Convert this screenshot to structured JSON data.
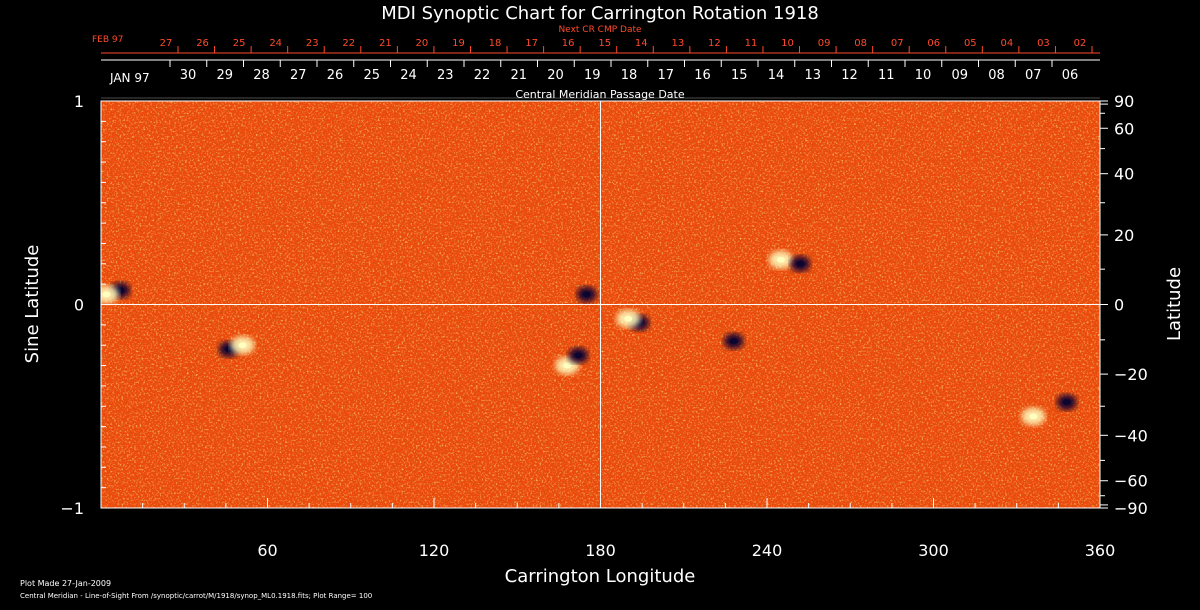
{
  "chart_data": {
    "type": "heatmap",
    "title": "MDI Synoptic Chart for Carrington Rotation 1918",
    "xlabel": "Carrington Longitude",
    "ylabel_left": "Sine Latitude",
    "ylabel_right": "Latitude",
    "xlim": [
      0,
      360
    ],
    "ylim_sine": [
      -1,
      1
    ],
    "x_ticks": [
      "60",
      "120",
      "180",
      "240",
      "300",
      "360"
    ],
    "x_tick_values": [
      60,
      120,
      180,
      240,
      300,
      360
    ],
    "y_left_ticks": [
      {
        "value": 1,
        "label": "1"
      },
      {
        "value": 0,
        "label": "0"
      },
      {
        "value": -1,
        "label": "−1"
      }
    ],
    "y_right_ticks": [
      {
        "deg": 90,
        "label": "90"
      },
      {
        "deg": 60,
        "label": "60"
      },
      {
        "deg": 40,
        "label": "40"
      },
      {
        "deg": 20,
        "label": "20"
      },
      {
        "deg": 0,
        "label": "0"
      },
      {
        "deg": -20,
        "label": "−20"
      },
      {
        "deg": -40,
        "label": "−40"
      },
      {
        "deg": -60,
        "label": "−60"
      },
      {
        "deg": -90,
        "label": "−90"
      }
    ],
    "top_axis_caption": "Central Meridian Passage Date",
    "cmp_month_label": "JAN 97",
    "cmp_dates": [
      "30",
      "29",
      "28",
      "27",
      "26",
      "25",
      "24",
      "23",
      "22",
      "21",
      "20",
      "19",
      "18",
      "17",
      "16",
      "15",
      "14",
      "13",
      "12",
      "11",
      "10",
      "09",
      "08",
      "07",
      "06"
    ],
    "next_cmp_caption": "Next CR CMP Date",
    "next_month_label": "FEB 97",
    "next_cmp_dates": [
      "27",
      "26",
      "25",
      "24",
      "23",
      "22",
      "21",
      "20",
      "19",
      "18",
      "17",
      "16",
      "15",
      "14",
      "13",
      "12",
      "11",
      "10",
      "09",
      "08",
      "07",
      "06",
      "05",
      "04",
      "03",
      "02"
    ],
    "colorscale": [
      "#0b0630",
      "#8a1900",
      "#e23800",
      "#ff6a10",
      "#ffc040",
      "#ffffc0"
    ],
    "background_color": "#ec4a0c",
    "active_regions": [
      {
        "lon": 7,
        "sinlat": 0.07,
        "polarity": "negative"
      },
      {
        "lon": 2,
        "sinlat": 0.05,
        "polarity": "positive"
      },
      {
        "lon": 46,
        "sinlat": -0.22,
        "polarity": "negative"
      },
      {
        "lon": 51,
        "sinlat": -0.2,
        "polarity": "positive"
      },
      {
        "lon": 168,
        "sinlat": -0.3,
        "polarity": "positive"
      },
      {
        "lon": 172,
        "sinlat": -0.25,
        "polarity": "negative"
      },
      {
        "lon": 175,
        "sinlat": 0.05,
        "polarity": "negative"
      },
      {
        "lon": 194,
        "sinlat": -0.09,
        "polarity": "negative"
      },
      {
        "lon": 190,
        "sinlat": -0.07,
        "polarity": "positive"
      },
      {
        "lon": 245,
        "sinlat": 0.22,
        "polarity": "positive"
      },
      {
        "lon": 252,
        "sinlat": 0.2,
        "polarity": "negative"
      },
      {
        "lon": 228,
        "sinlat": -0.18,
        "polarity": "negative"
      },
      {
        "lon": 336,
        "sinlat": -0.55,
        "polarity": "positive"
      },
      {
        "lon": 348,
        "sinlat": -0.48,
        "polarity": "negative"
      }
    ]
  },
  "footer": {
    "plot_made": "Plot Made 27-Jan-2009",
    "info": "Central Meridian - Line-of-Sight From /synoptic/carrot/M/1918/synop_ML0.1918.fits; Plot Range=  100"
  },
  "colors": {
    "axis": "#ffffff",
    "next_cmp": "#ff4a2a"
  }
}
